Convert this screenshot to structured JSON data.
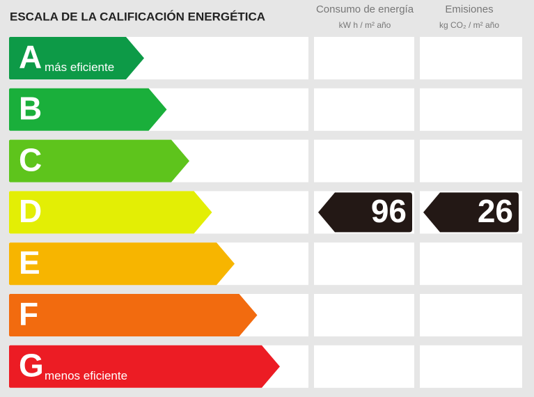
{
  "header": {
    "title": "ESCALA DE LA CALIFICACIÓN ENERGÉTICA"
  },
  "columns": [
    {
      "title": "Consumo de energía",
      "unit": "kW h / m² año"
    },
    {
      "title": "Emisiones",
      "unit": "kg CO₂ / m² año"
    }
  ],
  "ratings": [
    {
      "letter": "A",
      "note": "más eficiente",
      "color": "#0d9a47"
    },
    {
      "letter": "B",
      "color": "#1aaf3b"
    },
    {
      "letter": "C",
      "color": "#5ec41c"
    },
    {
      "letter": "D",
      "color": "#e3ee05"
    },
    {
      "letter": "E",
      "color": "#f7b500"
    },
    {
      "letter": "F",
      "color": "#f26b0f"
    },
    {
      "letter": "G",
      "note": "menos eficiente",
      "color": "#ec1c24"
    }
  ],
  "result": {
    "rating": "D",
    "consumption": 96,
    "emissions": 26
  }
}
